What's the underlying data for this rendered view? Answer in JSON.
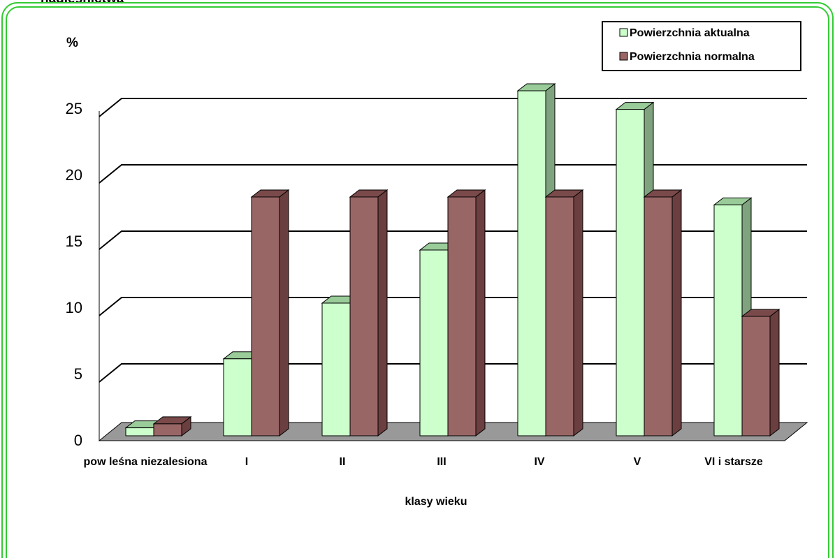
{
  "colors": {
    "frame": "#33cc33",
    "series_front": [
      "#ccffcc",
      "#996666"
    ],
    "series_side": [
      "#7fa37f",
      "#6b3f3f"
    ],
    "series_top": [
      "#99cc99",
      "#7a4a4a"
    ],
    "floor": "#999999",
    "gridline": "#000000"
  },
  "clipped_title": "nadleśnictwa",
  "chart_data": {
    "type": "bar",
    "ylabel": "%",
    "xlabel": "klasy wieku",
    "categories": [
      "pow leśna niezalesiona",
      "I",
      "II",
      "III",
      "IV",
      "V",
      "VI i starsze"
    ],
    "yticks": [
      0,
      5,
      10,
      15,
      20,
      25
    ],
    "ylim": [
      0,
      25
    ],
    "grid": true,
    "legend_position": "top-right",
    "series": [
      {
        "name": "Powierzchnia aktualna",
        "values": [
          0.6,
          5.8,
          10.0,
          14.0,
          26.0,
          24.6,
          17.4
        ]
      },
      {
        "name": "Powierzchnia normalna",
        "values": [
          0.9,
          18.0,
          18.0,
          18.0,
          18.0,
          18.0,
          9.0
        ]
      }
    ]
  }
}
